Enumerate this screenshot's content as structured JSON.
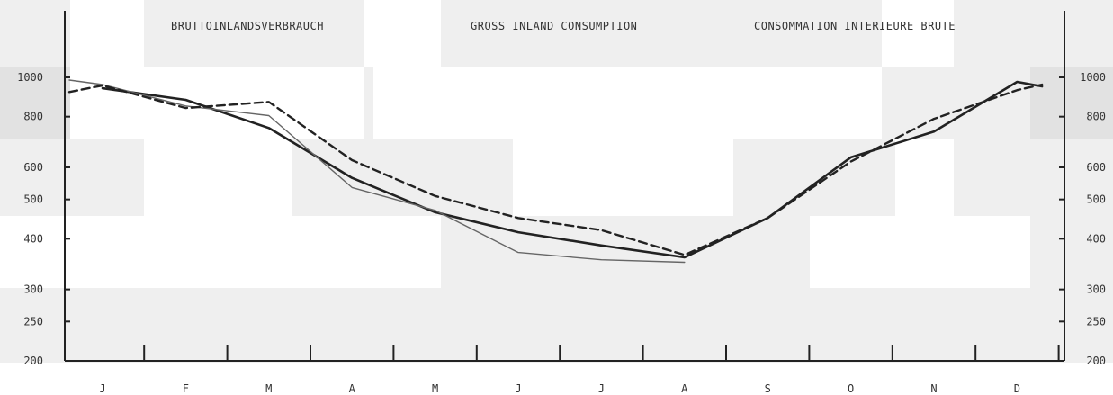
{
  "chart_data": {
    "type": "line",
    "titles": [
      "BRUTTOINLANDSVERBRAUCH",
      "GROSS INLAND CONSUMPTION",
      "CONSOMMATION INTERIEURE BRUTE"
    ],
    "categories": [
      "J",
      "F",
      "M",
      "A",
      "M",
      "J",
      "J",
      "A",
      "S",
      "O",
      "N",
      "D"
    ],
    "y_scale": "log",
    "ylim": [
      200,
      1000
    ],
    "y_ticks": [
      200,
      250,
      300,
      400,
      500,
      600,
      800,
      1000
    ],
    "y_tick_labels": [
      "200",
      "250",
      "300",
      "400",
      "500",
      "600",
      "800",
      "1000"
    ],
    "series": [
      {
        "style": "solid-thick",
        "color": "#222222",
        "x": [
          0,
          1,
          2,
          3,
          4,
          5,
          6,
          7,
          8,
          9,
          10,
          11,
          11.3
        ],
        "values": [
          940,
          880,
          750,
          565,
          465,
          415,
          385,
          360,
          450,
          635,
          735,
          975,
          950
        ]
      },
      {
        "style": "solid-thin",
        "color": "#666666",
        "x": [
          -0.4,
          0,
          1,
          2,
          3,
          4,
          5,
          6,
          7
        ],
        "values": [
          985,
          960,
          850,
          805,
          535,
          470,
          370,
          355,
          350
        ]
      },
      {
        "style": "dashed",
        "color": "#222222",
        "x": [
          -0.4,
          0,
          1,
          2,
          3,
          4,
          5,
          6,
          7,
          8,
          9,
          10,
          11,
          11.3
        ],
        "values": [
          920,
          955,
          840,
          870,
          625,
          510,
          450,
          420,
          365,
          450,
          620,
          790,
          930,
          960
        ]
      }
    ],
    "grid": false,
    "legend": "none"
  }
}
